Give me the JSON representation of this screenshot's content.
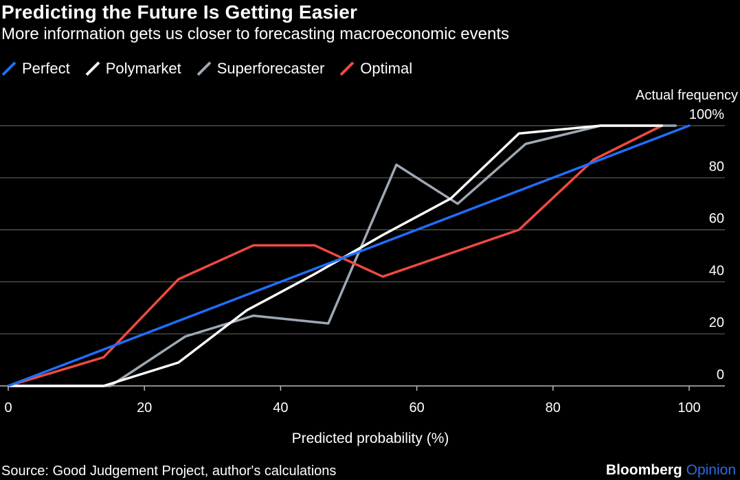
{
  "header": {
    "title": "Predicting the Future Is Getting Easier",
    "subtitle": "More information gets us closer to forecasting macroeconomic events"
  },
  "footer": {
    "source": "Source: Good Judgement Project, author's calculations",
    "brand_main": "Bloomberg",
    "brand_accent": "Opinion"
  },
  "colors": {
    "background": "#000000",
    "perfect": "#1f6fff",
    "polymarket": "#ffffff",
    "superforecaster": "#9ea8b3",
    "optimal": "#f04a40",
    "grid": "#5a5a5a",
    "brand_accent": "#2e6be6"
  },
  "chart_data": {
    "type": "line",
    "title": "Predicting the Future Is Getting Easier",
    "subtitle": "More information gets us closer to forecasting macroeconomic events",
    "xlabel": "Predicted probability (%)",
    "ylabel": "Actual frequency",
    "xlim": [
      0,
      100
    ],
    "ylim": [
      0,
      100
    ],
    "x_ticks": [
      0,
      20,
      40,
      60,
      80,
      100
    ],
    "y_ticks": [
      0,
      20,
      40,
      60,
      80,
      100
    ],
    "y_tick_labels": [
      "0",
      "20",
      "40",
      "60",
      "80",
      "100%"
    ],
    "grid": "horizontal",
    "legend_position": "top-left",
    "series": [
      {
        "name": "Perfect",
        "color": "#1f6fff",
        "points": [
          [
            0,
            0
          ],
          [
            100,
            100
          ]
        ]
      },
      {
        "name": "Polymarket",
        "color": "#ffffff",
        "points": [
          [
            0,
            0
          ],
          [
            14,
            0
          ],
          [
            25,
            9
          ],
          [
            35,
            29
          ],
          [
            45,
            43
          ],
          [
            55,
            58
          ],
          [
            65,
            72
          ],
          [
            75,
            97
          ],
          [
            87,
            100
          ],
          [
            96,
            100
          ]
        ]
      },
      {
        "name": "Superforecaster",
        "color": "#9ea8b3",
        "points": [
          [
            0,
            0
          ],
          [
            15,
            0
          ],
          [
            26,
            19
          ],
          [
            36,
            27
          ],
          [
            47,
            24
          ],
          [
            57,
            85
          ],
          [
            66,
            70
          ],
          [
            76,
            93
          ],
          [
            87,
            100
          ],
          [
            98,
            100
          ]
        ]
      },
      {
        "name": "Optimal",
        "color": "#f04a40",
        "points": [
          [
            0,
            0
          ],
          [
            14,
            11
          ],
          [
            25,
            41
          ],
          [
            36,
            54
          ],
          [
            45,
            54
          ],
          [
            55,
            42
          ],
          [
            75,
            60
          ],
          [
            86,
            87
          ],
          [
            96,
            100
          ]
        ]
      }
    ]
  }
}
